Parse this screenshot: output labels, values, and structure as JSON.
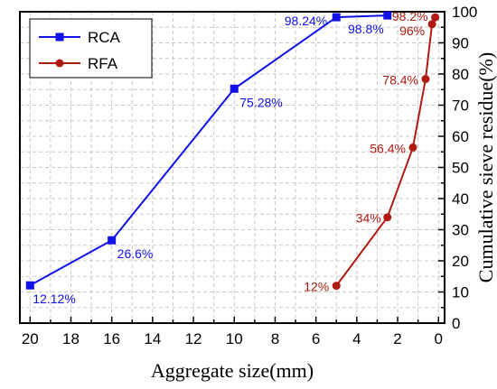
{
  "chart_data": {
    "type": "line",
    "xlabel": "Aggregate size(mm)",
    "ylabel": "Cumulative sieve residue(%)",
    "xlim": [
      20.5,
      -0.3
    ],
    "ylim": [
      0,
      100
    ],
    "x_reversed": true,
    "x_ticks": [
      "20",
      "18",
      "16",
      "14",
      "12",
      "10",
      "8",
      "6",
      "4",
      "2",
      "0"
    ],
    "y_ticks": [
      "0",
      "10",
      "20",
      "30",
      "40",
      "50",
      "60",
      "70",
      "80",
      "90",
      "100"
    ],
    "grid": true,
    "legend_position": "top-left",
    "series": [
      {
        "name": "RCA",
        "color": "#1010e8",
        "marker": "square",
        "x": [
          20,
          16,
          10,
          5,
          2.5
        ],
        "y": [
          12.12,
          26.6,
          75.28,
          98.24,
          98.8
        ],
        "labels": [
          "12.12%",
          "26.6%",
          "75.28%",
          "98.24%",
          "98.8%"
        ]
      },
      {
        "name": "RFA",
        "color": "#b01a10",
        "marker": "circle",
        "x": [
          5,
          2.5,
          1.25,
          0.63,
          0.315,
          0.16
        ],
        "y": [
          12,
          34,
          56.4,
          78.4,
          96,
          98.2
        ],
        "labels": [
          "12%",
          "34%",
          "56.4%",
          "78.4%",
          "96%",
          "98.2%"
        ]
      }
    ]
  }
}
